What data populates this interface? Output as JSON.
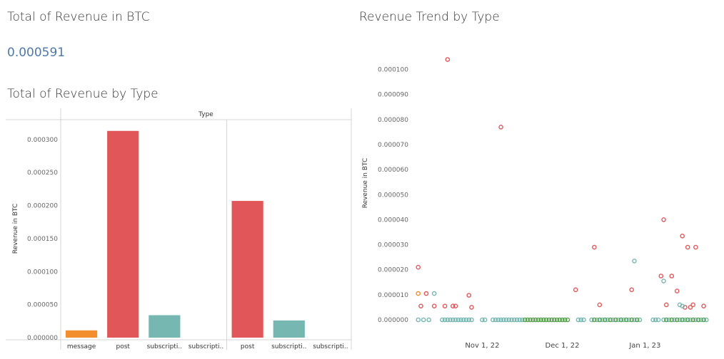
{
  "kpi": {
    "title": "Total of Revenue in BTC",
    "value": "0.000591"
  },
  "colors": {
    "message": "#f28e2b",
    "post": "#e15759",
    "subscription": "#76b7b2",
    "green": "#59a14f",
    "kpi": "#4e79a7"
  },
  "chart_data": [
    {
      "type": "bar",
      "title": "Total of Revenue by Type",
      "header_label": "Type",
      "ylabel": "Revenue in BTC",
      "ylim": [
        0,
        0.00033
      ],
      "yticks": [
        "0.000000",
        "0.000050",
        "0.000100",
        "0.000150",
        "0.000200",
        "0.000250",
        "0.000300"
      ],
      "grid": false,
      "panes": [
        {
          "categories": [
            "message",
            "post",
            "subscripti..",
            "subscripti.."
          ],
          "values": [
            1.1e-05,
            0.000313,
            3.4e-05,
            0.0
          ],
          "color_keys": [
            "message",
            "post",
            "subscription",
            "subscription"
          ]
        },
        {
          "categories": [
            "post",
            "subscripti..",
            "subscripti.."
          ],
          "values": [
            0.000207,
            2.6e-05,
            0.0
          ],
          "color_keys": [
            "post",
            "subscription",
            "subscription"
          ]
        }
      ]
    },
    {
      "type": "scatter",
      "title": "Revenue Trend by Type",
      "ylabel": "Revenue in BTC",
      "ylim": [
        0,
        0.000105
      ],
      "yticks": [
        "0.000000",
        "0.000010",
        "0.000020",
        "0.000030",
        "0.000040",
        "0.000050",
        "0.000060",
        "0.000070",
        "0.000080",
        "0.000090",
        "0.000100"
      ],
      "xlim": [
        "2022-10-07",
        "2023-01-29"
      ],
      "xticks": [
        {
          "label": "Nov 1, 22",
          "date": "2022-11-01"
        },
        {
          "label": "Dec 1, 22",
          "date": "2022-12-01"
        },
        {
          "label": "Jan 1, 23",
          "date": "2023-01-01"
        }
      ],
      "grid": false,
      "series": [
        {
          "color_key": "post",
          "points": [
            {
              "x": "2022-10-08",
              "y": 2.1e-05
            },
            {
              "x": "2022-10-09",
              "y": 5.5e-06
            },
            {
              "x": "2022-10-11",
              "y": 1.05e-05
            },
            {
              "x": "2022-10-14",
              "y": 5.5e-06
            },
            {
              "x": "2022-10-18",
              "y": 5.5e-06
            },
            {
              "x": "2022-10-19",
              "y": 0.000104
            },
            {
              "x": "2022-10-21",
              "y": 5.5e-06
            },
            {
              "x": "2022-10-22",
              "y": 5.5e-06
            },
            {
              "x": "2022-10-27",
              "y": 9.8e-06
            },
            {
              "x": "2022-10-28",
              "y": 5e-06
            },
            {
              "x": "2022-11-08",
              "y": 7.7e-05
            },
            {
              "x": "2022-12-06",
              "y": 1.2e-05
            },
            {
              "x": "2022-12-13",
              "y": 2.9e-05
            },
            {
              "x": "2022-12-15",
              "y": 6e-06
            },
            {
              "x": "2022-12-27",
              "y": 1.2e-05
            },
            {
              "x": "2023-01-07",
              "y": 1.75e-05
            },
            {
              "x": "2023-01-08",
              "y": 4e-05
            },
            {
              "x": "2023-01-09",
              "y": 6e-06
            },
            {
              "x": "2023-01-11",
              "y": 1.75e-05
            },
            {
              "x": "2023-01-13",
              "y": 1.15e-05
            },
            {
              "x": "2023-01-15",
              "y": 3.35e-05
            },
            {
              "x": "2023-01-16",
              "y": 5e-06
            },
            {
              "x": "2023-01-17",
              "y": 2.9e-05
            },
            {
              "x": "2023-01-18",
              "y": 5e-06
            },
            {
              "x": "2023-01-19",
              "y": 6e-06
            },
            {
              "x": "2023-01-20",
              "y": 2.9e-05
            },
            {
              "x": "2023-01-23",
              "y": 5.5e-06
            }
          ]
        },
        {
          "color_key": "message",
          "points": [
            {
              "x": "2022-10-08",
              "y": 1.05e-05
            }
          ]
        },
        {
          "color_key": "subscription",
          "points": [
            {
              "x": "2022-10-14",
              "y": 1.05e-05
            },
            {
              "x": "2022-12-28",
              "y": 2.35e-05
            },
            {
              "x": "2023-01-08",
              "y": 1.55e-05
            },
            {
              "x": "2023-01-14",
              "y": 6e-06
            },
            {
              "x": "2023-01-15",
              "y": 5.5e-06
            }
          ]
        },
        {
          "color_key": "subscription",
          "points": [
            {
              "x": "2022-10-08",
              "y": 0
            },
            {
              "x": "2022-10-10",
              "y": 0
            },
            {
              "x": "2022-10-12",
              "y": 0
            },
            {
              "x": "2022-10-17",
              "y": 0
            },
            {
              "x": "2022-10-18",
              "y": 0
            },
            {
              "x": "2022-10-19",
              "y": 0
            },
            {
              "x": "2022-10-20",
              "y": 0
            },
            {
              "x": "2022-10-21",
              "y": 0
            },
            {
              "x": "2022-10-22",
              "y": 0
            },
            {
              "x": "2022-10-23",
              "y": 0
            },
            {
              "x": "2022-10-24",
              "y": 0
            },
            {
              "x": "2022-10-25",
              "y": 0
            },
            {
              "x": "2022-10-26",
              "y": 0
            },
            {
              "x": "2022-10-27",
              "y": 0
            },
            {
              "x": "2022-10-28",
              "y": 0
            },
            {
              "x": "2022-11-01",
              "y": 0
            },
            {
              "x": "2022-11-02",
              "y": 0
            },
            {
              "x": "2022-11-05",
              "y": 0
            },
            {
              "x": "2022-11-06",
              "y": 0
            },
            {
              "x": "2022-11-07",
              "y": 0
            },
            {
              "x": "2022-11-08",
              "y": 0
            },
            {
              "x": "2022-11-09",
              "y": 0
            },
            {
              "x": "2022-11-10",
              "y": 0
            },
            {
              "x": "2022-11-11",
              "y": 0
            },
            {
              "x": "2022-11-12",
              "y": 0
            },
            {
              "x": "2022-11-13",
              "y": 0
            },
            {
              "x": "2022-11-14",
              "y": 0
            },
            {
              "x": "2022-11-15",
              "y": 0
            },
            {
              "x": "2022-11-16",
              "y": 0
            },
            {
              "x": "2022-12-07",
              "y": 0
            },
            {
              "x": "2022-12-08",
              "y": 0
            },
            {
              "x": "2022-12-09",
              "y": 0
            },
            {
              "x": "2022-12-12",
              "y": 0
            },
            {
              "x": "2022-12-14",
              "y": 0
            },
            {
              "x": "2022-12-16",
              "y": 0
            },
            {
              "x": "2022-12-18",
              "y": 0
            },
            {
              "x": "2022-12-20",
              "y": 0
            },
            {
              "x": "2022-12-22",
              "y": 0
            },
            {
              "x": "2022-12-24",
              "y": 0
            },
            {
              "x": "2022-12-26",
              "y": 0
            },
            {
              "x": "2022-12-28",
              "y": 0
            },
            {
              "x": "2022-12-30",
              "y": 0
            },
            {
              "x": "2023-01-04",
              "y": 0
            },
            {
              "x": "2023-01-05",
              "y": 0
            },
            {
              "x": "2023-01-06",
              "y": 0
            },
            {
              "x": "2023-01-08",
              "y": 0
            },
            {
              "x": "2023-01-10",
              "y": 0
            },
            {
              "x": "2023-01-12",
              "y": 0
            },
            {
              "x": "2023-01-14",
              "y": 0
            },
            {
              "x": "2023-01-16",
              "y": 0
            },
            {
              "x": "2023-01-18",
              "y": 0
            },
            {
              "x": "2023-01-20",
              "y": 0
            },
            {
              "x": "2023-01-22",
              "y": 0
            },
            {
              "x": "2023-01-24",
              "y": 0
            }
          ]
        },
        {
          "color_key": "green",
          "points": [
            {
              "x": "2022-11-17",
              "y": 0
            },
            {
              "x": "2022-11-18",
              "y": 0
            },
            {
              "x": "2022-11-19",
              "y": 0
            },
            {
              "x": "2022-11-20",
              "y": 0
            },
            {
              "x": "2022-11-21",
              "y": 0
            },
            {
              "x": "2022-11-22",
              "y": 0
            },
            {
              "x": "2022-11-23",
              "y": 0
            },
            {
              "x": "2022-11-24",
              "y": 0
            },
            {
              "x": "2022-11-25",
              "y": 0
            },
            {
              "x": "2022-11-26",
              "y": 0
            },
            {
              "x": "2022-11-27",
              "y": 0
            },
            {
              "x": "2022-11-28",
              "y": 0
            },
            {
              "x": "2022-11-29",
              "y": 0
            },
            {
              "x": "2022-11-30",
              "y": 0
            },
            {
              "x": "2022-12-01",
              "y": 0
            },
            {
              "x": "2022-12-02",
              "y": 0
            },
            {
              "x": "2022-12-03",
              "y": 0
            },
            {
              "x": "2022-12-13",
              "y": 0
            },
            {
              "x": "2022-12-15",
              "y": 0
            },
            {
              "x": "2022-12-17",
              "y": 0
            },
            {
              "x": "2022-12-19",
              "y": 0
            },
            {
              "x": "2022-12-21",
              "y": 0
            },
            {
              "x": "2022-12-23",
              "y": 0
            },
            {
              "x": "2022-12-25",
              "y": 0
            },
            {
              "x": "2022-12-27",
              "y": 0
            },
            {
              "x": "2022-12-29",
              "y": 0
            },
            {
              "x": "2023-01-09",
              "y": 0
            },
            {
              "x": "2023-01-11",
              "y": 0
            },
            {
              "x": "2023-01-13",
              "y": 0
            },
            {
              "x": "2023-01-15",
              "y": 0
            },
            {
              "x": "2023-01-17",
              "y": 0
            },
            {
              "x": "2023-01-19",
              "y": 0
            },
            {
              "x": "2023-01-21",
              "y": 0
            },
            {
              "x": "2023-01-23",
              "y": 0
            }
          ]
        }
      ]
    }
  ]
}
